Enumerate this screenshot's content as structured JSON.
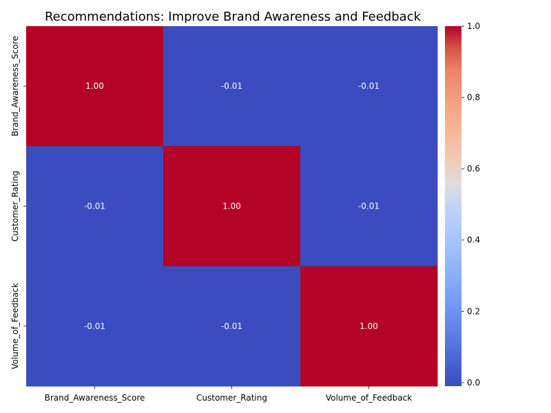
{
  "chart_data": {
    "type": "heatmap",
    "title": "Recommendations: Improve Brand Awareness and Feedback",
    "x_categories": [
      "Brand_Awareness_Score",
      "Customer_Rating",
      "Volume_of_Feedback"
    ],
    "y_categories": [
      "Brand_Awareness_Score",
      "Customer_Rating",
      "Volume_of_Feedback"
    ],
    "values": [
      [
        1.0,
        -0.01,
        -0.01
      ],
      [
        -0.01,
        1.0,
        -0.01
      ],
      [
        -0.01,
        -0.01,
        1.0
      ]
    ],
    "cell_labels": [
      [
        "1.00",
        "-0.01",
        "-0.01"
      ],
      [
        "-0.01",
        "1.00",
        "-0.01"
      ],
      [
        "-0.01",
        "-0.01",
        "1.00"
      ]
    ],
    "colormap": "coolwarm",
    "colorbar": {
      "range": [
        -0.01,
        1.0
      ],
      "ticks": [
        0.0,
        0.2,
        0.4,
        0.6,
        0.8,
        1.0
      ],
      "tick_labels": [
        "0.0",
        "0.2",
        "0.4",
        "0.6",
        "0.8",
        "1.0"
      ]
    },
    "colors": {
      "low": "#3b4cc0",
      "high": "#b40426"
    }
  }
}
